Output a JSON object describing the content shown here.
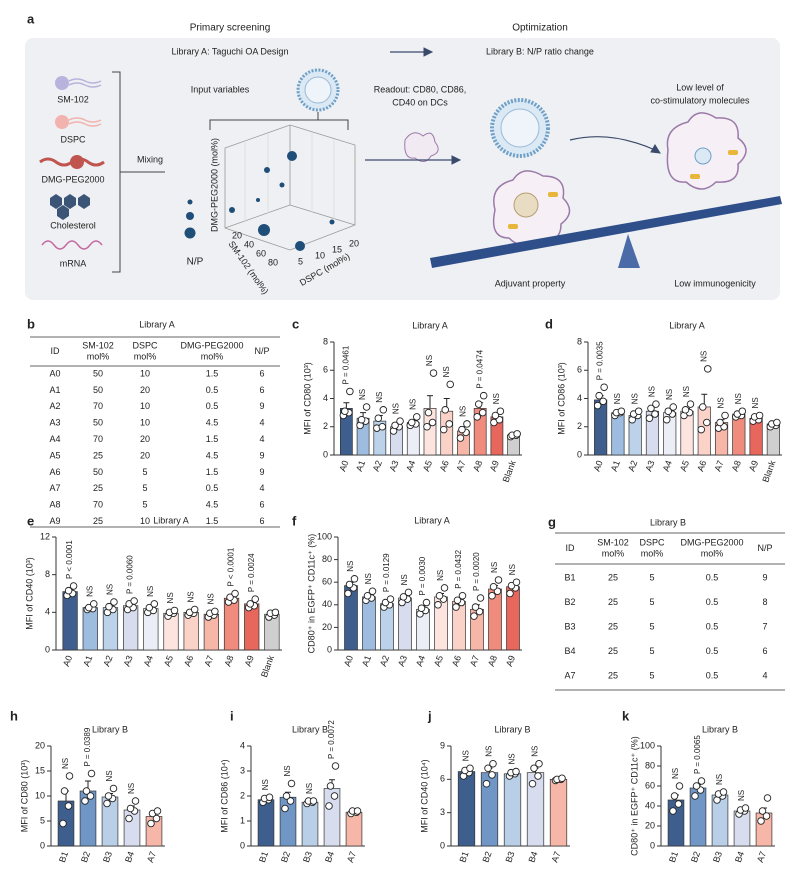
{
  "panel_a": {
    "label": "a",
    "primary": "Primary screening",
    "library_a": "Library A: Taguchi OA Design",
    "optimization": "Optimization",
    "library_b": "Library B: N/P ratio change",
    "components": [
      "SM-102",
      "DSPC",
      "DMG-PEG2000",
      "Cholesterol",
      "mRNA"
    ],
    "mixing": "Mixing",
    "input": "Input variables",
    "readout": [
      "Readout: CD80, CD86,",
      "CD40 on DCs"
    ],
    "low_level": [
      "Low level of",
      "co-stimulatory molecules"
    ],
    "np": "N/P",
    "axes": {
      "z": "DMG-PEG2000 (mol%)",
      "x": "SM-102 (mol%)",
      "y": "DSPC (mol%)"
    },
    "sm_ticks": [
      "20",
      "40",
      "60",
      "80"
    ],
    "dspc_ticks": [
      "5",
      "10",
      "15",
      "20"
    ],
    "adjuvant": "Adjuvant property",
    "low_immuno": "Low immunogenicity"
  },
  "table_b": {
    "label": "b",
    "title": "Library A",
    "header": [
      [
        "ID"
      ],
      [
        "SM-102",
        "mol%"
      ],
      [
        "DSPC",
        "mol%"
      ],
      [
        "DMG-PEG2000",
        "mol%"
      ],
      [
        "N/P"
      ]
    ],
    "rows": [
      [
        "A0",
        "50",
        "10",
        "1.5",
        "6"
      ],
      [
        "A1",
        "50",
        "20",
        "0.5",
        "6"
      ],
      [
        "A2",
        "70",
        "10",
        "0.5",
        "9"
      ],
      [
        "A3",
        "50",
        "10",
        "4.5",
        "4"
      ],
      [
        "A4",
        "70",
        "20",
        "1.5",
        "4"
      ],
      [
        "A5",
        "25",
        "20",
        "4.5",
        "9"
      ],
      [
        "A6",
        "50",
        "5",
        "1.5",
        "9"
      ],
      [
        "A7",
        "25",
        "5",
        "0.5",
        "4"
      ],
      [
        "A8",
        "70",
        "5",
        "4.5",
        "6"
      ],
      [
        "A9",
        "25",
        "10",
        "1.5",
        "6"
      ]
    ]
  },
  "table_g": {
    "label": "g",
    "title": "Library B",
    "header": [
      [
        "ID"
      ],
      [
        "SM-102",
        "mol%"
      ],
      [
        "DSPC",
        "mol%"
      ],
      [
        "DMG-PEG2000",
        "mol%"
      ],
      [
        "N/P"
      ]
    ],
    "rows": [
      [
        "B1",
        "25",
        "5",
        "0.5",
        "9"
      ],
      [
        "B2",
        "25",
        "5",
        "0.5",
        "8"
      ],
      [
        "B3",
        "25",
        "5",
        "0.5",
        "7"
      ],
      [
        "B4",
        "25",
        "5",
        "0.5",
        "6"
      ],
      [
        "A7",
        "25",
        "5",
        "0.5",
        "4"
      ]
    ]
  },
  "chart_data": [
    {
      "type": "bar",
      "panel": "c",
      "title": "Library A",
      "ylabel": "MFI of CD80 (10³)",
      "categories": [
        "A0",
        "A1",
        "A2",
        "A3",
        "A4",
        "A5",
        "A6",
        "A7",
        "A8",
        "A9",
        "Blank"
      ],
      "values": [
        3.3,
        2.6,
        2.4,
        2.0,
        2.3,
        3.3,
        3.1,
        1.7,
        3.3,
        2.7,
        1.4
      ],
      "errors": [
        0.4,
        0.4,
        0.4,
        0.2,
        0.2,
        0.9,
        0.9,
        0.3,
        0.4,
        0.2,
        0.1
      ],
      "points": [
        [
          2.8,
          3.0,
          3.1,
          4.5
        ],
        [
          2.1,
          2.4,
          2.5,
          3.4
        ],
        [
          1.9,
          2.0,
          2.6,
          3.2
        ],
        [
          1.7,
          2.0,
          2.1,
          2.4
        ],
        [
          2.1,
          2.2,
          2.3,
          2.7
        ],
        [
          2.0,
          2.3,
          3.0,
          5.8
        ],
        [
          1.8,
          2.2,
          3.2,
          5.0
        ],
        [
          1.2,
          1.6,
          1.8,
          2.2
        ],
        [
          2.7,
          3.0,
          3.6,
          4.2
        ],
        [
          2.3,
          2.5,
          2.8,
          3.1
        ],
        [
          1.3,
          1.4,
          1.4,
          1.5
        ]
      ],
      "annotations": [
        "P = 0.0461",
        "NS",
        "NS",
        "NS",
        "NS",
        "NS",
        "NS",
        "NS",
        "P = 0.0474",
        "NS",
        null
      ],
      "colors": [
        "#3e5f8e",
        "#9dbcdf",
        "#bcd2ea",
        "#d8dcef",
        "#eceef7",
        "#fde4de",
        "#fbd2c8",
        "#f6b6a8",
        "#f08c7e",
        "#e7675c",
        "#cfcfcf"
      ],
      "ylim": [
        0,
        8
      ],
      "yticks": [
        0,
        2,
        4,
        6,
        8
      ]
    },
    {
      "type": "bar",
      "panel": "d",
      "title": "Library A",
      "ylabel": "MFI of CD86 (10³)",
      "categories": [
        "A0",
        "A1",
        "A2",
        "A3",
        "A4",
        "A5",
        "A6",
        "A7",
        "A8",
        "A9",
        "Blank"
      ],
      "values": [
        3.9,
        3.0,
        2.8,
        3.1,
        3.0,
        3.1,
        3.4,
        2.3,
        2.9,
        2.6,
        2.2
      ],
      "errors": [
        0.3,
        0.1,
        0.2,
        0.3,
        0.2,
        0.2,
        0.9,
        0.2,
        0.1,
        0.1,
        0.1
      ],
      "points": [
        [
          3.5,
          3.8,
          4.2,
          4.8
        ],
        [
          2.8,
          3.0,
          3.0,
          3.1
        ],
        [
          2.5,
          2.8,
          2.9,
          3.1
        ],
        [
          2.6,
          2.9,
          3.3,
          3.6
        ],
        [
          2.5,
          2.9,
          3.1,
          3.4
        ],
        [
          2.8,
          3.0,
          3.2,
          3.6
        ],
        [
          1.8,
          2.3,
          3.4,
          6.1
        ],
        [
          1.9,
          2.0,
          2.3,
          2.8
        ],
        [
          2.7,
          2.8,
          2.9,
          3.1
        ],
        [
          2.4,
          2.5,
          2.7,
          2.8
        ],
        [
          2.0,
          2.1,
          2.2,
          2.3
        ]
      ],
      "annotations": [
        "P = 0.0035",
        "NS",
        "NS",
        "NS",
        "NS",
        "NS",
        "NS",
        "NS",
        "NS",
        "NS",
        null
      ],
      "colors": [
        "#3e5f8e",
        "#9dbcdf",
        "#bcd2ea",
        "#d8dcef",
        "#eceef7",
        "#fde4de",
        "#fbd2c8",
        "#f6b6a8",
        "#f08c7e",
        "#e7675c",
        "#cfcfcf"
      ],
      "ylim": [
        0,
        8
      ],
      "yticks": [
        0,
        2,
        4,
        6,
        8
      ]
    },
    {
      "type": "bar",
      "panel": "e",
      "title": "Library A",
      "ylabel": "MFI of CD40 (10³)",
      "categories": [
        "A0",
        "A1",
        "A2",
        "A3",
        "A4",
        "A5",
        "A6",
        "A7",
        "A8",
        "A9",
        "Blank"
      ],
      "values": [
        6.2,
        4.5,
        4.5,
        4.7,
        4.4,
        3.9,
        4.0,
        3.8,
        5.5,
        4.9,
        3.8
      ],
      "errors": [
        0.2,
        0.1,
        0.2,
        0.2,
        0.2,
        0.1,
        0.1,
        0.1,
        0.2,
        0.2,
        0.1
      ],
      "points": [
        [
          5.8,
          6.0,
          6.3,
          6.8
        ],
        [
          4.3,
          4.4,
          4.5,
          4.9
        ],
        [
          4.0,
          4.3,
          4.6,
          5.1
        ],
        [
          4.3,
          4.5,
          4.9,
          5.2
        ],
        [
          4.0,
          4.2,
          4.5,
          4.9
        ],
        [
          3.6,
          3.9,
          4.0,
          4.2
        ],
        [
          3.7,
          3.9,
          4.0,
          4.3
        ],
        [
          3.5,
          3.7,
          3.9,
          4.1
        ],
        [
          5.1,
          5.3,
          5.6,
          6.0
        ],
        [
          4.5,
          4.7,
          4.9,
          5.4
        ],
        [
          3.5,
          3.7,
          3.9,
          4.0
        ]
      ],
      "annotations": [
        "P < 0.0001",
        "NS",
        "NS",
        "P = 0.0060",
        "NS",
        "NS",
        "NS",
        "NS",
        "P < 0.0001",
        "P = 0.0024",
        null
      ],
      "colors": [
        "#3e5f8e",
        "#9dbcdf",
        "#bcd2ea",
        "#d8dcef",
        "#eceef7",
        "#fde4de",
        "#fbd2c8",
        "#f6b6a8",
        "#f08c7e",
        "#e7675c",
        "#cfcfcf"
      ],
      "ylim": [
        0,
        12
      ],
      "yticks": [
        0,
        4,
        8,
        12
      ]
    },
    {
      "type": "bar",
      "panel": "f",
      "title": "Library A",
      "ylabel": "CD80⁺ in EGFP⁺ CD11c⁺ (%)",
      "categories": [
        "A0",
        "A1",
        "A2",
        "A3",
        "A4",
        "A5",
        "A6",
        "A7",
        "A8",
        "A9"
      ],
      "values": [
        57,
        47,
        41,
        46,
        36,
        47,
        43,
        36,
        54,
        56
      ],
      "errors": [
        3,
        2,
        2,
        2,
        3,
        3,
        2,
        4,
        3,
        2
      ],
      "points": [
        [
          50,
          55,
          58,
          63
        ],
        [
          44,
          46,
          48,
          52
        ],
        [
          38,
          40,
          42,
          45
        ],
        [
          42,
          45,
          47,
          51
        ],
        [
          32,
          35,
          37,
          42
        ],
        [
          40,
          45,
          48,
          55
        ],
        [
          38,
          42,
          44,
          48
        ],
        [
          30,
          34,
          38,
          46
        ],
        [
          48,
          52,
          56,
          62
        ],
        [
          50,
          55,
          57,
          60
        ]
      ],
      "annotations": [
        "NS",
        "NS",
        "P = 0.0129",
        "NS",
        "P = 0.0030",
        "NS",
        "P = 0.0432",
        "P = 0.0020",
        "NS",
        "NS"
      ],
      "colors": [
        "#3e5f8e",
        "#9dbcdf",
        "#bcd2ea",
        "#d8dcef",
        "#eceef7",
        "#fde4de",
        "#fbd2c8",
        "#f6b6a8",
        "#f08c7e",
        "#e7675c"
      ],
      "ylim": [
        0,
        100
      ],
      "yticks": [
        0,
        20,
        40,
        60,
        80,
        100
      ]
    },
    {
      "type": "bar",
      "panel": "h",
      "title": "Library B",
      "ylabel": "MFI of CD80 (10³)",
      "categories": [
        "B1",
        "B2",
        "B3",
        "B4",
        "A7"
      ],
      "values": [
        9,
        11,
        9.8,
        7.2,
        5.9
      ],
      "errors": [
        2,
        2,
        0.7,
        0.8,
        0.6
      ],
      "points": [
        [
          4.5,
          8,
          11,
          14
        ],
        [
          9,
          10,
          11,
          14.5
        ],
        [
          8.5,
          9.5,
          10,
          11.5
        ],
        [
          5.5,
          7,
          7.5,
          9
        ],
        [
          4.5,
          5.5,
          6.5,
          7
        ]
      ],
      "annotations": [
        "NS",
        "P = 0.0389",
        "NS",
        "NS",
        null
      ],
      "colors": [
        "#3e5f8e",
        "#7096c6",
        "#b9cfe8",
        "#d8dcef",
        "#f6b6a8"
      ],
      "ylim": [
        0,
        20
      ],
      "yticks": [
        0,
        5,
        10,
        15,
        20
      ]
    },
    {
      "type": "bar",
      "panel": "i",
      "title": "Library B",
      "ylabel": "MFI of CD86 (10⁴)",
      "categories": [
        "B1",
        "B2",
        "B3",
        "B4",
        "A7"
      ],
      "values": [
        1.85,
        1.95,
        1.75,
        2.3,
        1.35
      ],
      "errors": [
        0.05,
        0.2,
        0.03,
        0.35,
        0.03
      ],
      "points": [
        [
          1.75,
          1.85,
          1.9,
          1.95
        ],
        [
          1.5,
          1.8,
          2.0,
          2.5
        ],
        [
          1.7,
          1.75,
          1.8,
          1.8
        ],
        [
          1.6,
          2.0,
          2.4,
          3.2
        ],
        [
          1.3,
          1.35,
          1.4,
          1.4
        ]
      ],
      "annotations": [
        "NS",
        "NS",
        "NS",
        "P = 0.0072",
        null
      ],
      "colors": [
        "#3e5f8e",
        "#7096c6",
        "#b9cfe8",
        "#d8dcef",
        "#f6b6a8"
      ],
      "ylim": [
        0,
        4
      ],
      "yticks": [
        0,
        1,
        2,
        3,
        4
      ]
    },
    {
      "type": "bar",
      "panel": "j",
      "title": "Library B",
      "ylabel": "MFI of CD40 (10⁴)",
      "categories": [
        "B1",
        "B2",
        "B3",
        "B4",
        "A7"
      ],
      "values": [
        6.7,
        6.6,
        6.5,
        6.6,
        6.0
      ],
      "errors": [
        0.15,
        0.4,
        0.1,
        0.4,
        0.05
      ],
      "points": [
        [
          6.3,
          6.6,
          6.8,
          7.0
        ],
        [
          5.6,
          6.4,
          7.0,
          7.4
        ],
        [
          6.3,
          6.5,
          6.6,
          6.7
        ],
        [
          5.6,
          6.3,
          7.0,
          7.4
        ],
        [
          5.9,
          6.0,
          6.0,
          6.1
        ]
      ],
      "annotations": [
        "NS",
        "NS",
        "NS",
        "NS",
        null
      ],
      "colors": [
        "#3e5f8e",
        "#7096c6",
        "#b9cfe8",
        "#d8dcef",
        "#f6b6a8"
      ],
      "ylim": [
        0,
        9
      ],
      "yticks": [
        0,
        3,
        6,
        9
      ]
    },
    {
      "type": "bar",
      "panel": "k",
      "title": "Library B",
      "ylabel": "CD80⁺ in EGFP⁺ CD11c⁺ (%)",
      "categories": [
        "B1",
        "B2",
        "B3",
        "B4",
        "A7"
      ],
      "values": [
        46,
        58,
        51,
        35,
        33
      ],
      "errors": [
        5,
        3,
        2,
        1,
        5
      ],
      "points": [
        [
          35,
          42,
          50,
          60
        ],
        [
          50,
          56,
          60,
          65
        ],
        [
          46,
          50,
          52,
          54
        ],
        [
          32,
          35,
          36,
          38
        ],
        [
          25,
          30,
          35,
          48
        ]
      ],
      "annotations": [
        "NS",
        "P = 0.0065",
        "NS",
        "NS",
        null
      ],
      "colors": [
        "#3e5f8e",
        "#7096c6",
        "#b9cfe8",
        "#d8dcef",
        "#f6b6a8"
      ],
      "ylim": [
        0,
        100
      ],
      "yticks": [
        0,
        20,
        40,
        60,
        80,
        100
      ]
    }
  ]
}
